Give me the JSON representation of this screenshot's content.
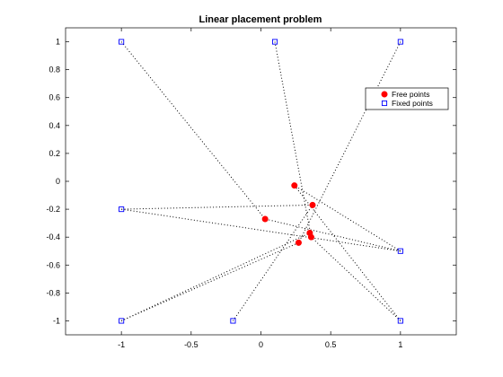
{
  "chart_data": {
    "type": "scatter",
    "title": "Linear placement problem",
    "xlabel": "",
    "ylabel": "",
    "xlim": [
      -1.4,
      1.4
    ],
    "ylim": [
      -1.1,
      1.1
    ],
    "xticks": [
      -1,
      -0.5,
      0,
      0.5,
      1
    ],
    "xtick_labels": [
      "-1",
      "-0.5",
      "0",
      "0.5",
      "1"
    ],
    "yticks": [
      1,
      0.8,
      0.6,
      0.4,
      0.2,
      0,
      -0.2,
      -0.4,
      -0.6,
      -0.8,
      -1
    ],
    "ytick_labels": [
      "1",
      "0.8",
      "0.6",
      "0.4",
      "0.2",
      "0",
      "-0.2",
      "-0.4",
      "-0.6",
      "-0.8",
      "-1"
    ],
    "grid": false,
    "legend_position": "top-right",
    "series": [
      {
        "name": "Free points",
        "marker": "circle",
        "color": "#ff0000",
        "points": [
          {
            "x": 0.24,
            "y": -0.03
          },
          {
            "x": 0.37,
            "y": -0.17
          },
          {
            "x": 0.03,
            "y": -0.27
          },
          {
            "x": 0.35,
            "y": -0.37
          },
          {
            "x": 0.36,
            "y": -0.4
          },
          {
            "x": 0.27,
            "y": -0.44
          }
        ]
      },
      {
        "name": "Fixed points",
        "marker": "square",
        "color": "#0000ff",
        "points": [
          {
            "x": -1,
            "y": 1
          },
          {
            "x": 0.1,
            "y": 1
          },
          {
            "x": 1,
            "y": 1
          },
          {
            "x": -1,
            "y": -0.2
          },
          {
            "x": 1,
            "y": -0.5
          },
          {
            "x": -1,
            "y": -1
          },
          {
            "x": -0.2,
            "y": -1
          },
          {
            "x": 1,
            "y": -1
          }
        ]
      }
    ],
    "connections": {
      "style": "dotted",
      "color": "#000000",
      "segments": [
        [
          {
            "x": -1,
            "y": 1
          },
          {
            "x": 0.03,
            "y": -0.27
          }
        ],
        [
          {
            "x": 0.1,
            "y": 1
          },
          {
            "x": 0.36,
            "y": -0.4
          }
        ],
        [
          {
            "x": 1,
            "y": 1
          },
          {
            "x": 0.27,
            "y": -0.44
          }
        ],
        [
          {
            "x": -1,
            "y": -0.2
          },
          {
            "x": 0.37,
            "y": -0.17
          }
        ],
        [
          {
            "x": -1,
            "y": -0.2
          },
          {
            "x": 1,
            "y": -0.5
          }
        ],
        [
          {
            "x": 1,
            "y": -0.5
          },
          {
            "x": 0.24,
            "y": -0.03
          }
        ],
        [
          {
            "x": 1,
            "y": -0.5
          },
          {
            "x": 0.03,
            "y": -0.27
          }
        ],
        [
          {
            "x": -1,
            "y": -1
          },
          {
            "x": 0.35,
            "y": -0.37
          }
        ],
        [
          {
            "x": -1,
            "y": -1
          },
          {
            "x": 0.27,
            "y": -0.44
          }
        ],
        [
          {
            "x": -0.2,
            "y": -1
          },
          {
            "x": 0.37,
            "y": -0.17
          }
        ],
        [
          {
            "x": 1,
            "y": -1
          },
          {
            "x": 0.24,
            "y": -0.03
          }
        ],
        [
          {
            "x": 1,
            "y": -1
          },
          {
            "x": 0.36,
            "y": -0.4
          }
        ]
      ]
    }
  }
}
